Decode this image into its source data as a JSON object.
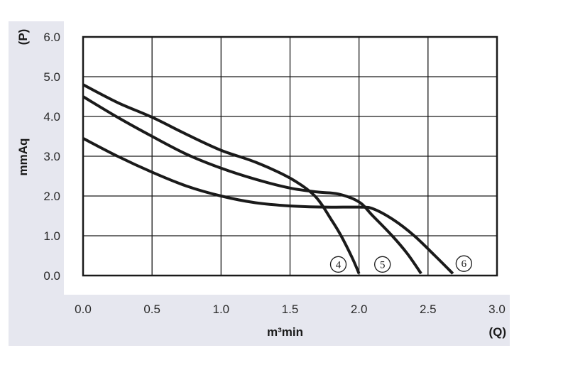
{
  "chart_data": {
    "type": "line",
    "xlabel": "m³min",
    "xlabel_symbol": "(Q)",
    "ylabel": "mmAq",
    "ylabel_symbol": "(P)",
    "xlim": [
      0,
      3.0
    ],
    "ylim": [
      0,
      6.0
    ],
    "x_ticks": [
      "0.0",
      "0.5",
      "1.0",
      "1.5",
      "2.0",
      "2.5",
      "3.0"
    ],
    "y_ticks": [
      "0.0",
      "1.0",
      "2.0",
      "3.0",
      "4.0",
      "5.0",
      "6.0"
    ],
    "grid": true,
    "panel_color": "#e6e7ef",
    "line_color": "#1a1a1a",
    "series": [
      {
        "name": "4",
        "points": [
          [
            0,
            4.8
          ],
          [
            0.25,
            4.35
          ],
          [
            0.5,
            3.98
          ],
          [
            0.75,
            3.55
          ],
          [
            1.0,
            3.15
          ],
          [
            1.25,
            2.85
          ],
          [
            1.5,
            2.45
          ],
          [
            1.68,
            2.0
          ],
          [
            1.8,
            1.4
          ],
          [
            1.87,
            1.0
          ],
          [
            1.95,
            0.45
          ],
          [
            2.0,
            0.05
          ]
        ]
      },
      {
        "name": "5",
        "points": [
          [
            0,
            4.5
          ],
          [
            0.25,
            3.98
          ],
          [
            0.5,
            3.5
          ],
          [
            0.75,
            3.05
          ],
          [
            1.0,
            2.7
          ],
          [
            1.25,
            2.42
          ],
          [
            1.5,
            2.2
          ],
          [
            1.7,
            2.1
          ],
          [
            1.85,
            2.05
          ],
          [
            2.0,
            1.85
          ],
          [
            2.1,
            1.5
          ],
          [
            2.24,
            1.0
          ],
          [
            2.35,
            0.55
          ],
          [
            2.45,
            0.05
          ]
        ]
      },
      {
        "name": "6",
        "points": [
          [
            0,
            3.45
          ],
          [
            0.25,
            3.0
          ],
          [
            0.5,
            2.6
          ],
          [
            0.75,
            2.25
          ],
          [
            1.0,
            2.0
          ],
          [
            1.25,
            1.83
          ],
          [
            1.5,
            1.75
          ],
          [
            1.75,
            1.72
          ],
          [
            2.0,
            1.72
          ],
          [
            2.1,
            1.68
          ],
          [
            2.25,
            1.4
          ],
          [
            2.4,
            1.0
          ],
          [
            2.55,
            0.5
          ],
          [
            2.68,
            0.05
          ]
        ]
      }
    ],
    "curve_labels": [
      {
        "text": "4",
        "x": 1.85,
        "y": 0.28
      },
      {
        "text": "5",
        "x": 2.17,
        "y": 0.28
      },
      {
        "text": "6",
        "x": 2.76,
        "y": 0.3
      }
    ]
  }
}
